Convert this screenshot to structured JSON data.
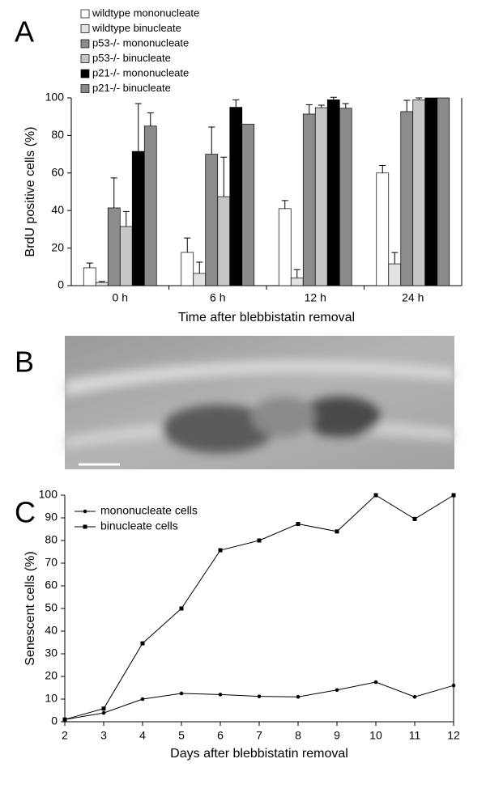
{
  "chart_data": [
    {
      "type": "bar",
      "panel_label": "A",
      "y_label": "BrdU positive cells (%)",
      "x_label": "Time after blebbistatin removal",
      "categories": [
        "0 h",
        "6 h",
        "12 h",
        "24 h"
      ],
      "ylim": [
        0,
        100
      ],
      "yticks": [
        0,
        20,
        40,
        60,
        80,
        100
      ],
      "series": [
        {
          "name": "wildtype mononucleate",
          "color": "#ffffff",
          "values": [
            9.5,
            17.7,
            41,
            60
          ],
          "errors": [
            2.5,
            7.7,
            4.3,
            4
          ]
        },
        {
          "name": "wildtype binucleate",
          "color": "#e2e2e2",
          "values": [
            1.7,
            6.5,
            4,
            11.6
          ],
          "errors": [
            0.5,
            6,
            4.5,
            6
          ]
        },
        {
          "name": "p53-/- mononucleate",
          "color": "#8c8c8c",
          "values": [
            41.4,
            70,
            91.4,
            92.7
          ],
          "errors": [
            16,
            14.5,
            5,
            6
          ]
        },
        {
          "name": "p53-/- binucleate",
          "color": "#c6c6c6",
          "values": [
            31.5,
            47.4,
            94.8,
            99
          ],
          "errors": [
            8,
            21,
            1.3,
            1
          ]
        },
        {
          "name": "p21-/- mononucleate",
          "color": "#000000",
          "values": [
            71.5,
            95,
            99,
            100
          ],
          "errors": [
            25.5,
            4,
            1.3,
            null
          ]
        },
        {
          "name": "p21-/- binucleate",
          "color": "#8a8a8a",
          "values": [
            85,
            86,
            94.5,
            100
          ],
          "errors": [
            7,
            null,
            2.5,
            null
          ]
        }
      ]
    },
    {
      "type": "image",
      "panel_label": "B"
    },
    {
      "type": "line",
      "panel_label": "C",
      "y_label": "Senescent cells (%)",
      "x_label": "Days after blebbistatin removal",
      "x": [
        2,
        3,
        4,
        5,
        6,
        7,
        8,
        9,
        10,
        11,
        12
      ],
      "xlim": [
        2,
        12
      ],
      "xticks": [
        2,
        3,
        4,
        5,
        6,
        7,
        8,
        9,
        10,
        11,
        12
      ],
      "ylim": [
        0,
        100
      ],
      "yticks": [
        0,
        10,
        20,
        30,
        40,
        50,
        60,
        70,
        80,
        90,
        100
      ],
      "series": [
        {
          "name": "mononucleate cells",
          "color": "#000000",
          "marker": "circle",
          "values": [
            1,
            3.9,
            10,
            12.5,
            12,
            11.2,
            11,
            14,
            17.5,
            11,
            16
          ]
        },
        {
          "name": "binucleate cells",
          "color": "#000000",
          "marker": "square",
          "values": [
            1,
            5.8,
            34.6,
            50,
            75.7,
            80,
            87.3,
            84,
            100,
            89.5,
            100
          ]
        }
      ]
    }
  ]
}
